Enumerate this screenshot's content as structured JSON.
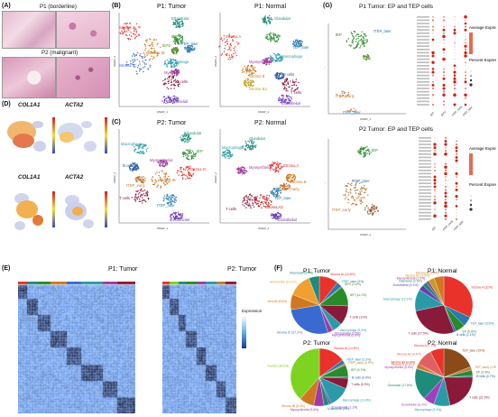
{
  "panels": {
    "A": {
      "letter": "(A)",
      "p1": "P1 (borderline)",
      "p2": "P2 (malignant)"
    },
    "B": {
      "letter": "(B)",
      "left_title": "P1: Tumor",
      "right_title": "P1: Normal",
      "left_labels": [
        {
          "t": "Stroma tA",
          "c": "#e8322a"
        },
        {
          "t": "tGlandular",
          "c": "#1e8c7a"
        },
        {
          "t": "tEP",
          "c": "#2a8a2a"
        },
        {
          "t": "tEP2",
          "c": "#5a8a2a"
        },
        {
          "t": "tTEP_later",
          "c": "#2a7ab0"
        },
        {
          "t": "Stroma tB",
          "c": "#d07820"
        },
        {
          "t": "Stroma tC",
          "c": "#3a6ad0"
        },
        {
          "t": "Macrophage",
          "c": "#2a9aa8"
        },
        {
          "t": "Myeloid",
          "c": "#a03aa0"
        },
        {
          "t": "T cells",
          "c": "#8a1a3a"
        },
        {
          "t": "tEndothelial",
          "c": "#6a3ab0"
        }
      ],
      "right_labels": [
        {
          "t": "Glandular",
          "c": "#1e8c7a"
        },
        {
          "t": "EP",
          "c": "#2a8a2a"
        },
        {
          "t": "TEP_later",
          "c": "#2a7ab0"
        },
        {
          "t": "Stroma A",
          "c": "#e8322a"
        },
        {
          "t": "Macrophage",
          "c": "#2a9aa8"
        },
        {
          "t": "Myosynthelial",
          "c": "#a03aa0"
        },
        {
          "t": "Stroma B",
          "c": "#d07820"
        },
        {
          "t": "B cells",
          "c": "#2a5aa0"
        },
        {
          "t": "Stroma B2",
          "c": "#c0a020"
        },
        {
          "t": "T cells",
          "c": "#8a1a3a"
        },
        {
          "t": "Endothelial",
          "c": "#6a3ab0"
        }
      ]
    },
    "C": {
      "letter": "(C)",
      "left_title": "P2: Tumor",
      "right_title": "P2: Normal",
      "left_labels": [
        {
          "t": "tGlandular",
          "c": "#1e8c7a"
        },
        {
          "t": "Macrophage",
          "c": "#2a9aa8"
        },
        {
          "t": "tEP",
          "c": "#2a8a2a"
        },
        {
          "t": "B cells",
          "c": "#2a5aa0"
        },
        {
          "t": "Myosynthelial",
          "c": "#a03aa0"
        },
        {
          "t": "Stroma tA",
          "c": "#e8322a"
        },
        {
          "t": "Stroma tB",
          "c": "#d07820"
        },
        {
          "t": "tTEP_early",
          "c": "#c07a3a"
        },
        {
          "t": "tTEP_later",
          "c": "#2a7ab0"
        },
        {
          "t": "T cells",
          "c": "#8a1a3a"
        },
        {
          "t": "tEndothelial",
          "c": "#6a3ab0"
        }
      ],
      "right_labels": [
        {
          "t": "Glandular",
          "c": "#1e8c7a"
        },
        {
          "t": "Macrophage",
          "c": "#2a9aa8"
        },
        {
          "t": "Stroma A",
          "c": "#e8322a"
        },
        {
          "t": "Myosynthelial",
          "c": "#a03aa0"
        },
        {
          "t": "Stroma B",
          "c": "#d07820"
        },
        {
          "t": "TEP_early",
          "c": "#c07a3a"
        },
        {
          "t": "Stroma A3",
          "c": "#c02020"
        },
        {
          "t": "TEP_later",
          "c": "#2a7ab0"
        },
        {
          "t": "T cells",
          "c": "#8a1a3a"
        },
        {
          "t": "Endothelial",
          "c": "#6a3ab0"
        }
      ]
    },
    "D": {
      "letter": "(D)",
      "genes": [
        "COL1A1",
        "ACTA2",
        "COL1A1",
        "ACTA2"
      ]
    },
    "E": {
      "letter": "(E)",
      "left_title": "P1: Tumor",
      "right_title": "P2: Tumor",
      "legend": "Expression"
    },
    "F": {
      "letter": "(F)",
      "titles": [
        "P1: Tumor",
        "P1: Normal",
        "P2: Tumor",
        "P2: Normal"
      ]
    },
    "G": {
      "letter": "(G)",
      "top_title": "P1 Tumor: EP and TEP cells",
      "bottom_title": "P2 Tumor: EP and TEP cells",
      "top_labels": [
        "tEP",
        "tTEP_later",
        "tEP2",
        "tTEP_early",
        "tTEP_later"
      ],
      "bottom_labels": [
        "tEP",
        "tTEP_later",
        "tTEP_early"
      ],
      "legend_avg": "Average Expression",
      "legend_pct": "Percent Expressed",
      "xcats_top": [
        "tEP",
        "tEP2",
        "tTEP_early",
        "tTEP_later"
      ],
      "xcats_bottom": [
        "tEP",
        "tTEP_early",
        "tTEP_later"
      ]
    }
  },
  "axes": {
    "umap1": "UMAP_1",
    "umap2": "UMAP_2"
  },
  "chart_data": [
    {
      "type": "pie",
      "title": "P1: Tumor",
      "series": [
        {
          "name": "Stroma tA",
          "value": 10.8,
          "color": "#e8322a"
        },
        {
          "name": "tTEP_later",
          "value": 3.0,
          "color": "#2a7ab0"
        },
        {
          "name": "tEP2",
          "value": 0.6,
          "color": "#5a8a2a"
        },
        {
          "name": "tEP",
          "value": 11.1,
          "color": "#2a8a2a"
        },
        {
          "name": "T cells",
          "value": 11.0,
          "color": "#8a1a3a"
        },
        {
          "name": "Macrophage",
          "value": 5.4,
          "color": "#2a9aa8"
        },
        {
          "name": "tEndothelial",
          "value": 0.5,
          "color": "#6a3ab0"
        },
        {
          "name": "Myosynthelial",
          "value": 2.8,
          "color": "#a03aa0"
        },
        {
          "name": "Stroma tC",
          "value": 27.2,
          "color": "#3a6ad0"
        },
        {
          "name": "Stroma tB",
          "value": 8.6,
          "color": "#d07820"
        },
        {
          "name": "Stroma tB2",
          "value": 13.1,
          "color": "#f0a030"
        },
        {
          "name": "tGlandular",
          "value": 5.9,
          "color": "#1e8c7a"
        }
      ]
    },
    {
      "type": "pie",
      "title": "P1: Normal",
      "series": [
        {
          "name": "Stroma A",
          "value": 32.0,
          "color": "#e8322a"
        },
        {
          "name": "TEP_later",
          "value": 5.5,
          "color": "#2a7ab0"
        },
        {
          "name": "EP",
          "value": 5.6,
          "color": "#2a8a2a"
        },
        {
          "name": "B cells",
          "value": 1.1,
          "color": "#2a5aa0"
        },
        {
          "name": "T cells",
          "value": 27.5,
          "color": "#8a1a3a"
        },
        {
          "name": "Macrophage",
          "value": 12.2,
          "color": "#2a9aa8"
        },
        {
          "name": "Endothelial",
          "value": 3.1,
          "color": "#6a3ab0"
        },
        {
          "name": "Glandular",
          "value": 2.5,
          "color": "#1e8c7a"
        },
        {
          "name": "Myosynthelial",
          "value": 1.5,
          "color": "#a03aa0"
        },
        {
          "name": "Stroma B2",
          "value": 3.5,
          "color": "#c0a020"
        },
        {
          "name": "Stroma B",
          "value": 5.5,
          "color": "#d07820"
        }
      ]
    },
    {
      "type": "pie",
      "title": "P2: Tumor",
      "series": [
        {
          "name": "Stroma tA",
          "value": 14.8,
          "color": "#e8322a"
        },
        {
          "name": "tTEP_later",
          "value": 2.3,
          "color": "#2a7ab0"
        },
        {
          "name": "tTEP_early",
          "value": 0.9,
          "color": "#c07a3a"
        },
        {
          "name": "tEP",
          "value": 6.7,
          "color": "#2a8a2a"
        },
        {
          "name": "B cells",
          "value": 0.9,
          "color": "#2a5aa0"
        },
        {
          "name": "T cells",
          "value": 5.9,
          "color": "#8a1a3a"
        },
        {
          "name": "Macrophage",
          "value": 11.8,
          "color": "#2a9aa8"
        },
        {
          "name": "tEndothelial",
          "value": 1.1,
          "color": "#6a3ab0"
        },
        {
          "name": "tGlandular",
          "value": 3.0,
          "color": "#1e8c7a"
        },
        {
          "name": "Myosynthelial",
          "value": 5.8,
          "color": "#a03aa0"
        },
        {
          "name": "Stroma tB",
          "value": 8.3,
          "color": "#d07820"
        },
        {
          "name": "Stroma tB2",
          "value": 38.5,
          "color": "#7ed321"
        }
      ]
    },
    {
      "type": "pie",
      "title": "P2: Normal",
      "series": [
        {
          "name": "TEP_later",
          "value": 19.0,
          "color": "#8a4a1a"
        },
        {
          "name": "TEP_early",
          "value": 1.9,
          "color": "#c07a3a"
        },
        {
          "name": "EP",
          "value": 3.3,
          "color": "#2a8a2a"
        },
        {
          "name": "B cells",
          "value": 0.7,
          "color": "#2a5aa0"
        },
        {
          "name": "T cells",
          "value": 21.5,
          "color": "#8a1a3a"
        },
        {
          "name": "Macrophage",
          "value": 9.2,
          "color": "#2a9aa8"
        },
        {
          "name": "Endothelial",
          "value": 6.2,
          "color": "#a040c0"
        },
        {
          "name": "Glandular",
          "value": 17.8,
          "color": "#1e8c7a"
        },
        {
          "name": "Myosynthelial",
          "value": 0.4,
          "color": "#a03aa0"
        },
        {
          "name": "Stroma B",
          "value": 2.1,
          "color": "#d07820"
        },
        {
          "name": "Stroma A3",
          "value": 0.6,
          "color": "#c02020"
        },
        {
          "name": "Stroma A2",
          "value": 9.3,
          "color": "#e06060"
        },
        {
          "name": "Stroma A",
          "value": 7.7,
          "color": "#e8322a"
        }
      ]
    }
  ]
}
